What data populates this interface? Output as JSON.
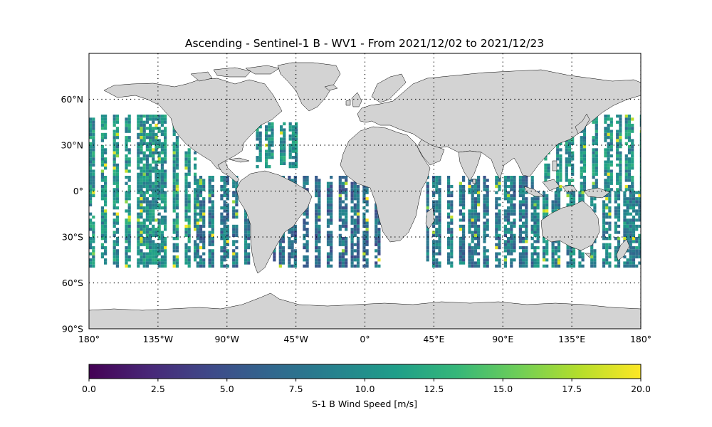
{
  "map": {
    "title": "Ascending - Sentinel-1 B - WV1 - From 2021/12/02 to 2021/12/23",
    "projection": "PlateCarree",
    "extent": {
      "lon": [
        -180,
        180
      ],
      "lat": [
        -90,
        90
      ]
    },
    "land_color": "#d3d3d3",
    "gridlines": {
      "lon": [
        -135,
        -90,
        -45,
        0,
        45,
        90,
        135,
        180
      ],
      "lat": [
        60,
        30,
        0,
        -30,
        -60
      ]
    },
    "lon_tick_labels": [
      "180°",
      "135°W",
      "90°W",
      "45°W",
      "0°",
      "45°E",
      "90°E",
      "135°E",
      "180°"
    ],
    "lat_tick_labels": [
      "60°N",
      "30°N",
      "0°",
      "30°S",
      "60°S",
      "90°S"
    ],
    "lat_tick_values": [
      60,
      30,
      0,
      -30,
      -60,
      -90
    ],
    "lon_tick_values": [
      -180,
      -135,
      -90,
      -45,
      0,
      45,
      90,
      135,
      180
    ]
  },
  "colorbar": {
    "label": "S-1 B Wind Speed [m/s]",
    "min": 0,
    "max": 20,
    "tick_values": [
      0,
      2.5,
      5,
      7.5,
      10,
      12.5,
      15,
      17.5,
      20
    ],
    "tick_labels": [
      "0.0",
      "2.5",
      "5.0",
      "7.5",
      "10.0",
      "12.5",
      "15.0",
      "17.5",
      "20.0"
    ],
    "colormap": "viridis",
    "stops": [
      "#440154",
      "#482878",
      "#3e4a89",
      "#31688e",
      "#26828e",
      "#1f9e89",
      "#35b779",
      "#6ece58",
      "#b5de2b",
      "#fde725"
    ]
  },
  "chart_data": {
    "type": "heatmap",
    "title": "Ascending - Sentinel-1 B - WV1 - From 2021/12/02 to 2021/12/23",
    "xlim": [
      -180,
      180
    ],
    "ylim": [
      -90,
      90
    ],
    "value_range": [
      0,
      20
    ],
    "value_label": "S-1 B Wind Speed [m/s]",
    "observed_lat_band": [
      -50,
      50
    ],
    "regions": [
      {
        "lon": [
          -180,
          -110
        ],
        "lat": [
          -50,
          50
        ],
        "mean_speed": 10
      },
      {
        "lon": [
          -110,
          -75
        ],
        "lat": [
          -50,
          10
        ],
        "mean_speed": 8
      },
      {
        "lon": [
          -75,
          -40
        ],
        "lat": [
          15,
          45
        ],
        "mean_speed": 10
      },
      {
        "lon": [
          -60,
          10
        ],
        "lat": [
          -50,
          10
        ],
        "mean_speed": 7
      },
      {
        "lon": [
          40,
          110
        ],
        "lat": [
          -50,
          10
        ],
        "mean_speed": 8
      },
      {
        "lon": [
          115,
          180
        ],
        "lat": [
          0,
          50
        ],
        "mean_speed": 10
      },
      {
        "lon": [
          110,
          180
        ],
        "lat": [
          -50,
          0
        ],
        "mean_speed": 9
      }
    ]
  }
}
